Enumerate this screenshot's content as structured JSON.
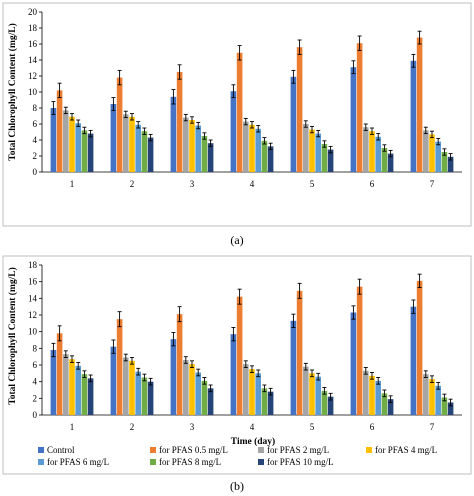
{
  "colors": [
    "#4472C4",
    "#ED7D31",
    "#A5A5A5",
    "#FFC000",
    "#5B9BD5",
    "#70AD47",
    "#264478"
  ],
  "legend": [
    "Control",
    "for PFAS 0.5 mg/L",
    "for PFAS 2 mg/L",
    "for PFAS 4 mg/L",
    "for PFAS 6 mg/L",
    "for PFAS 8 mg/L",
    "for PFAS 10 mg/L"
  ],
  "chart_data": [
    {
      "type": "bar",
      "panel_label": "(a)",
      "ylabel": "Total Chlorophyll Content (mg/L)",
      "xlabel": "",
      "ylim": [
        0,
        20
      ],
      "yticks": [
        0,
        2,
        4,
        6,
        8,
        10,
        12,
        14,
        16,
        18,
        20
      ],
      "categories": [
        "1",
        "2",
        "3",
        "4",
        "5",
        "6",
        "7"
      ],
      "grid": false,
      "series": [
        {
          "name": "Control",
          "values": [
            8.0,
            8.5,
            9.4,
            10.1,
            11.9,
            13.1,
            13.9
          ],
          "errors": [
            0.8,
            0.8,
            0.9,
            0.8,
            0.8,
            0.8,
            0.8
          ]
        },
        {
          "name": "for PFAS 0.5 mg/L",
          "values": [
            10.2,
            11.8,
            12.5,
            14.9,
            15.6,
            16.1,
            16.8
          ],
          "errors": [
            0.9,
            0.9,
            0.9,
            0.9,
            0.9,
            0.9,
            0.8
          ]
        },
        {
          "name": "for PFAS 2 mg/L",
          "values": [
            7.7,
            7.2,
            6.8,
            6.3,
            6.0,
            5.6,
            5.2
          ],
          "errors": [
            0.4,
            0.4,
            0.4,
            0.4,
            0.4,
            0.4,
            0.4
          ]
        },
        {
          "name": "for PFAS 4 mg/L",
          "values": [
            6.9,
            6.9,
            6.5,
            5.9,
            5.3,
            5.1,
            4.7
          ],
          "errors": [
            0.4,
            0.4,
            0.4,
            0.4,
            0.4,
            0.4,
            0.4
          ]
        },
        {
          "name": "for PFAS 6 mg/L",
          "values": [
            6.1,
            5.9,
            5.8,
            5.4,
            4.8,
            4.4,
            3.8
          ],
          "errors": [
            0.4,
            0.4,
            0.4,
            0.4,
            0.4,
            0.4,
            0.4
          ]
        },
        {
          "name": "for PFAS 8 mg/L",
          "values": [
            5.2,
            5.1,
            4.5,
            3.9,
            3.5,
            3.0,
            2.5
          ],
          "errors": [
            0.4,
            0.4,
            0.4,
            0.4,
            0.4,
            0.4,
            0.4
          ]
        },
        {
          "name": "for PFAS 10 mg/L",
          "values": [
            4.8,
            4.3,
            3.6,
            3.2,
            2.8,
            2.3,
            1.9
          ],
          "errors": [
            0.4,
            0.4,
            0.4,
            0.4,
            0.4,
            0.4,
            0.4
          ]
        }
      ]
    },
    {
      "type": "bar",
      "panel_label": "(b)",
      "ylabel": "Total Chlorophyll Content (mg/L)",
      "xlabel": "Time (day)",
      "ylim": [
        0,
        18
      ],
      "yticks": [
        0,
        2,
        4,
        6,
        8,
        10,
        12,
        14,
        16,
        18
      ],
      "categories": [
        "1",
        "2",
        "3",
        "4",
        "5",
        "6",
        "7"
      ],
      "grid": false,
      "series": [
        {
          "name": "Control",
          "values": [
            7.8,
            8.2,
            9.1,
            9.7,
            11.3,
            12.3,
            13.0
          ],
          "errors": [
            0.8,
            0.8,
            0.8,
            0.8,
            0.8,
            0.8,
            0.8
          ]
        },
        {
          "name": "for PFAS 0.5 mg/L",
          "values": [
            9.8,
            11.5,
            12.1,
            14.2,
            14.9,
            15.4,
            16.1
          ],
          "errors": [
            0.9,
            0.9,
            0.9,
            0.9,
            0.9,
            0.9,
            0.8
          ]
        },
        {
          "name": "for PFAS 2 mg/L",
          "values": [
            7.3,
            6.9,
            6.6,
            6.1,
            5.8,
            5.3,
            4.9
          ],
          "errors": [
            0.4,
            0.4,
            0.4,
            0.4,
            0.4,
            0.4,
            0.4
          ]
        },
        {
          "name": "for PFAS 4 mg/L",
          "values": [
            6.7,
            6.5,
            6.1,
            5.5,
            5.0,
            4.7,
            4.3
          ],
          "errors": [
            0.4,
            0.4,
            0.4,
            0.4,
            0.4,
            0.4,
            0.4
          ]
        },
        {
          "name": "for PFAS 6 mg/L",
          "values": [
            5.9,
            5.2,
            5.1,
            5.0,
            4.6,
            4.1,
            3.5
          ],
          "errors": [
            0.4,
            0.4,
            0.4,
            0.4,
            0.4,
            0.4,
            0.4
          ]
        },
        {
          "name": "for PFAS 8 mg/L",
          "values": [
            4.9,
            4.5,
            4.1,
            3.2,
            2.9,
            2.6,
            2.1
          ],
          "errors": [
            0.4,
            0.4,
            0.4,
            0.4,
            0.4,
            0.4,
            0.4
          ]
        },
        {
          "name": "for PFAS 10 mg/L",
          "values": [
            4.4,
            4.0,
            3.2,
            2.8,
            2.2,
            1.9,
            1.5
          ],
          "errors": [
            0.4,
            0.4,
            0.4,
            0.4,
            0.4,
            0.4,
            0.4
          ]
        }
      ]
    }
  ]
}
